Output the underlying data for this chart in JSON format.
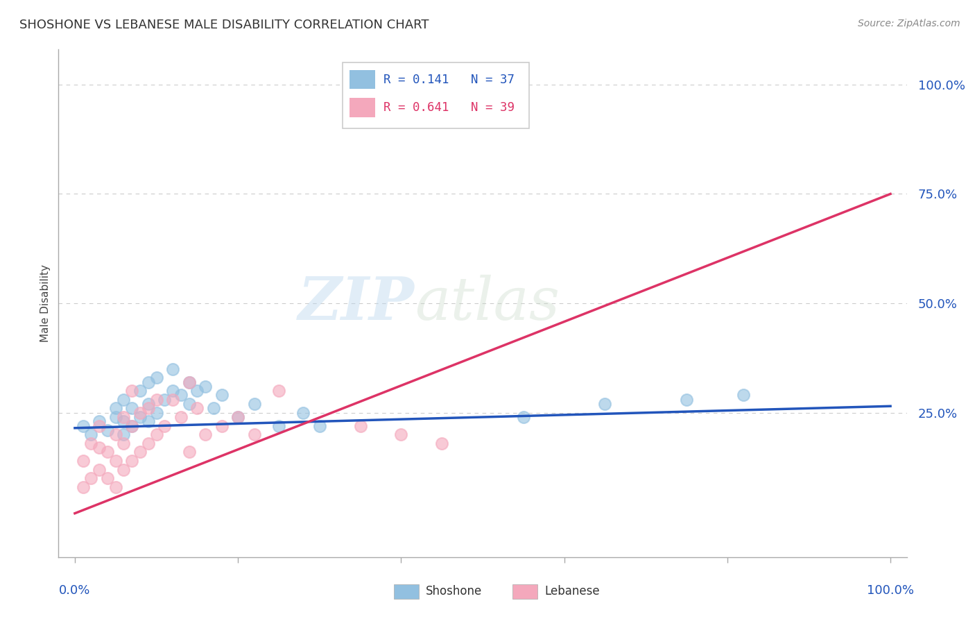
{
  "title": "SHOSHONE VS LEBANESE MALE DISABILITY CORRELATION CHART",
  "source_text": "Source: ZipAtlas.com",
  "ylabel": "Male Disability",
  "shoshone_color": "#92C0E0",
  "lebanese_color": "#F4A8BC",
  "shoshone_line_color": "#2255BB",
  "lebanese_line_color": "#DD3366",
  "shoshone_R": 0.141,
  "shoshone_N": 37,
  "lebanese_R": 0.641,
  "lebanese_N": 39,
  "watermark_zip": "ZIP",
  "watermark_atlas": "atlas",
  "grid_color": "#CCCCCC",
  "background_color": "#FFFFFF",
  "shoshone_x": [
    1,
    2,
    3,
    4,
    5,
    5,
    6,
    6,
    6,
    7,
    7,
    8,
    8,
    9,
    9,
    9,
    10,
    10,
    11,
    12,
    12,
    13,
    14,
    14,
    15,
    16,
    17,
    18,
    20,
    22,
    25,
    28,
    55,
    65,
    75,
    82,
    30
  ],
  "shoshone_y": [
    22,
    20,
    23,
    21,
    24,
    26,
    20,
    23,
    28,
    22,
    26,
    24,
    30,
    23,
    27,
    32,
    25,
    33,
    28,
    30,
    35,
    29,
    27,
    32,
    30,
    31,
    26,
    29,
    24,
    27,
    22,
    25,
    24,
    27,
    28,
    29,
    22
  ],
  "lebanese_x": [
    1,
    1,
    2,
    2,
    3,
    3,
    3,
    4,
    4,
    5,
    5,
    5,
    6,
    6,
    6,
    7,
    7,
    7,
    8,
    8,
    9,
    9,
    10,
    10,
    11,
    12,
    13,
    14,
    14,
    15,
    16,
    18,
    20,
    22,
    25,
    35,
    40,
    45,
    50
  ],
  "lebanese_y": [
    8,
    14,
    10,
    18,
    12,
    17,
    22,
    10,
    16,
    8,
    14,
    20,
    12,
    18,
    24,
    14,
    22,
    30,
    16,
    25,
    18,
    26,
    20,
    28,
    22,
    28,
    24,
    16,
    32,
    26,
    20,
    22,
    24,
    20,
    30,
    22,
    20,
    18,
    100
  ],
  "shoshone_trend_x": [
    0,
    100
  ],
  "shoshone_trend_y": [
    21.5,
    26.5
  ],
  "lebanese_trend_x": [
    0,
    100
  ],
  "lebanese_trend_y": [
    2.0,
    75.0
  ],
  "ylim": [
    -8,
    108
  ],
  "xlim": [
    -2,
    102
  ],
  "yticks": [
    0,
    25,
    50,
    75,
    100
  ],
  "ytick_labels": [
    "",
    "25.0%",
    "50.0%",
    "75.0%",
    "100.0%"
  ]
}
